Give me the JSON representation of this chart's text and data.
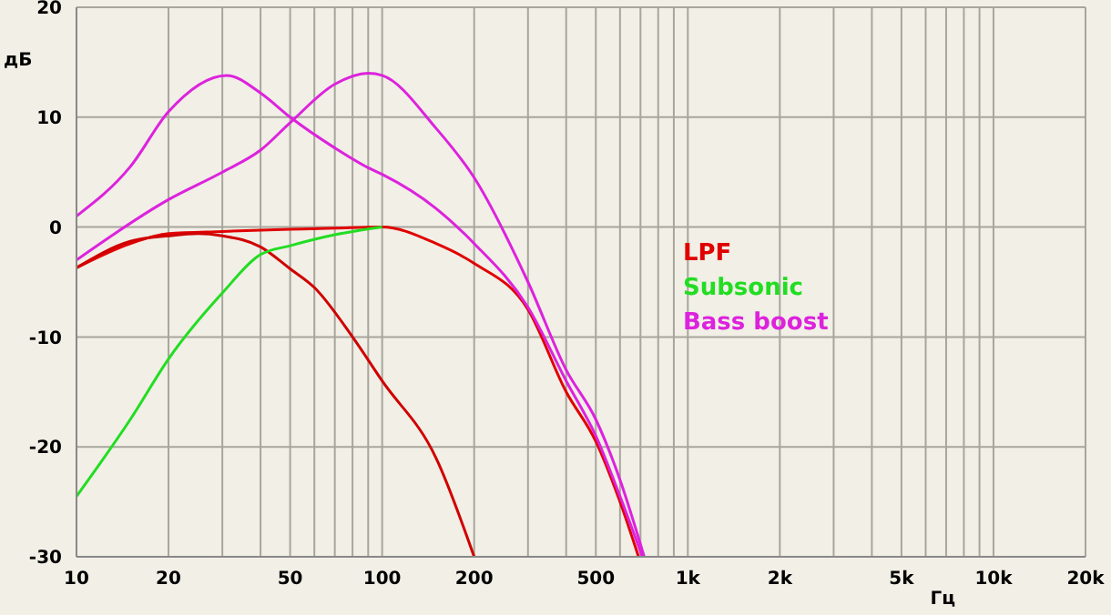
{
  "chart_data": {
    "type": "line",
    "xlabel": "Гц",
    "ylabel": "дБ",
    "log": "x",
    "grid": true,
    "legend": "center",
    "marker": "none",
    "line_style": "solid",
    "xlim": [
      10,
      20000
    ],
    "ylim": [
      -30,
      20
    ],
    "xticks": [
      10,
      20,
      {
        "value": 30,
        "label": null
      },
      {
        "value": 40,
        "label": null
      },
      50,
      {
        "value": 60,
        "label": null
      },
      {
        "value": 70,
        "label": null
      },
      {
        "value": 80,
        "label": null
      },
      {
        "value": 90,
        "label": null
      },
      100,
      200,
      {
        "value": 300,
        "label": null
      },
      {
        "value": 400,
        "label": null
      },
      500,
      {
        "value": 600,
        "label": null
      },
      {
        "value": 700,
        "label": null
      },
      {
        "value": 800,
        "label": null
      },
      {
        "value": 900,
        "label": null
      },
      {
        "value": 1000,
        "label": "1k"
      },
      {
        "value": 2000,
        "label": "2k"
      },
      {
        "value": 3000,
        "label": null
      },
      {
        "value": 4000,
        "label": null
      },
      {
        "value": 5000,
        "label": "5k"
      },
      {
        "value": 6000,
        "label": null
      },
      {
        "value": 7000,
        "label": null
      },
      {
        "value": 8000,
        "label": null
      },
      {
        "value": 9000,
        "label": null
      },
      {
        "value": 10000,
        "label": "10k"
      },
      {
        "value": 20000,
        "label": "20k"
      }
    ],
    "yticks": [
      -30,
      -20,
      -10,
      0,
      10,
      20
    ],
    "series": [
      {
        "name": "LPF",
        "color": "#e00000",
        "x": [
          10,
          15,
          20,
          30,
          50,
          70,
          100,
          150,
          200,
          300,
          400,
          500,
          600,
          690
        ],
        "values": [
          -3.7,
          -1.5,
          -0.6,
          -0.4,
          -0.2,
          -0.1,
          0,
          -1.5,
          -3.3,
          -7.5,
          -15,
          -19.5,
          -25,
          -30
        ]
      },
      {
        "color": "#d00000",
        "x": [
          10,
          15,
          20,
          25,
          30,
          40,
          50,
          60,
          80,
          100,
          150,
          200
        ],
        "values": [
          -3.7,
          -1.3,
          -0.8,
          -0.6,
          -0.8,
          -1.8,
          -3.8,
          -5.5,
          -10,
          -14,
          -21,
          -30
        ]
      },
      {
        "name": "Subsonic",
        "color": "#22dd22",
        "x": [
          10,
          15,
          20,
          30,
          40,
          50,
          70,
          100
        ],
        "values": [
          -24.5,
          -17.5,
          -12,
          -6,
          -2.5,
          -1.7,
          -0.7,
          0
        ]
      },
      {
        "name": "Bass boost",
        "color": "#dd22dd",
        "x": [
          10,
          15,
          20,
          31,
          40,
          50,
          70,
          90,
          100,
          150,
          200,
          300,
          400,
          500,
          600,
          710
        ],
        "values": [
          1,
          5.5,
          10.5,
          13.8,
          12.2,
          10,
          7.2,
          5.4,
          4.8,
          1.7,
          -1.5,
          -7.3,
          -14,
          -19,
          -24.5,
          -30
        ]
      },
      {
        "color": "#dd22dd",
        "x": [
          10,
          20,
          30,
          40,
          50,
          70,
          90,
          100,
          150,
          200,
          300,
          400,
          500,
          600,
          720
        ],
        "values": [
          -3,
          2.5,
          5,
          7,
          9.5,
          13,
          14,
          13.8,
          9,
          4.5,
          -5,
          -13,
          -17.5,
          -23,
          -30
        ]
      }
    ]
  }
}
